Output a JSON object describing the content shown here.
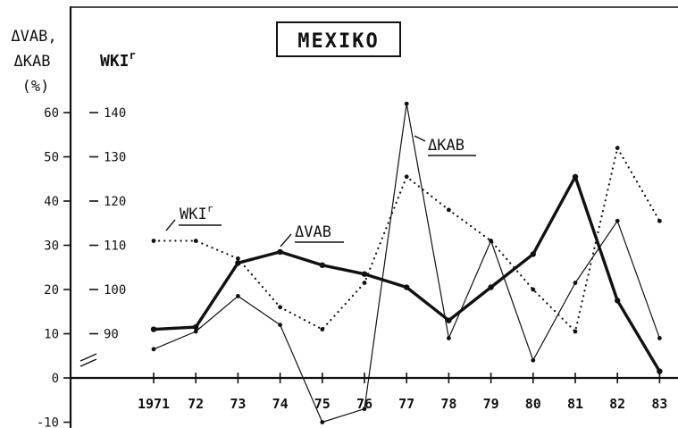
{
  "chart_data": {
    "type": "line",
    "title": "MEXIKO",
    "y_left_label": [
      "ΔVAB,",
      "ΔKAB",
      "(%)"
    ],
    "y_right_label": "WKI",
    "y_right_label_sup": "r",
    "categories": [
      "1971",
      "72",
      "73",
      "74",
      "75",
      "76",
      "77",
      "78",
      "79",
      "80",
      "81",
      "82",
      "83"
    ],
    "y_left_ticks": [
      "-10",
      "0",
      "10",
      "20",
      "30",
      "40",
      "50",
      "60"
    ],
    "y_left_tick_values": [
      -10,
      0,
      10,
      20,
      30,
      40,
      50,
      60
    ],
    "y_right_ticks": [
      "90",
      "100",
      "110",
      "120",
      "130",
      "140"
    ],
    "y_right_tick_values": [
      90,
      100,
      110,
      120,
      130,
      140
    ],
    "ylim_left": [
      -10,
      66
    ],
    "series": [
      {
        "name": "ΔVAB",
        "style": "thick",
        "axis": "left",
        "values": [
          11,
          11.5,
          26,
          28.5,
          25.5,
          23.5,
          20.5,
          13,
          20.5,
          28,
          45.5,
          17.5,
          1.5
        ]
      },
      {
        "name": "ΔKAB",
        "style": "thin",
        "axis": "left",
        "values": [
          6.5,
          10.5,
          18.5,
          12,
          -10,
          -7,
          62,
          9,
          31,
          4,
          21.5,
          35.5,
          9
        ]
      },
      {
        "name": "WKI",
        "name_sup": "r",
        "style": "dotted",
        "axis": "right",
        "values": [
          111,
          111,
          107,
          96,
          91,
          101.5,
          125.5,
          118,
          111,
          100,
          90.5,
          132,
          115.5
        ]
      }
    ],
    "annotations": [
      {
        "text": "WKI",
        "sup": "r",
        "series": "WKI"
      },
      {
        "text": "ΔVAB",
        "series": "ΔVAB"
      },
      {
        "text": "ΔKAB",
        "series": "ΔKAB"
      }
    ]
  }
}
